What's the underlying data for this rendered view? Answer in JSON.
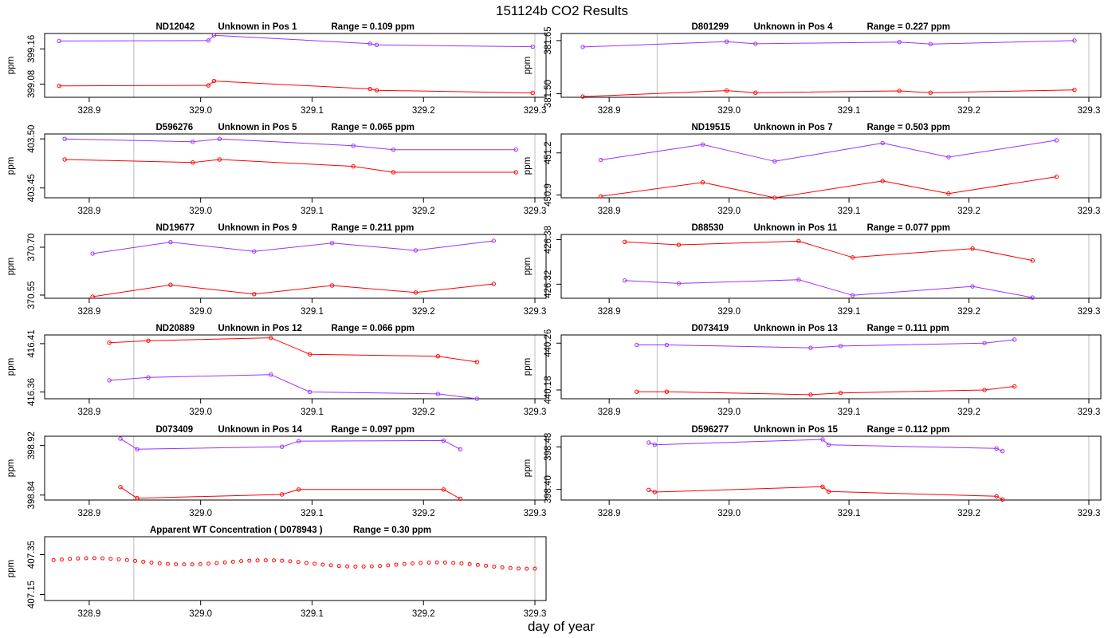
{
  "figure": {
    "title": "151124b  CO2 Results",
    "xlabel": "day of year"
  },
  "colors": {
    "series_a": "#9b30ff",
    "series_b": "#ff0000",
    "vline": "#bdbdbd",
    "axis": "#000000"
  },
  "chart_data": [
    {
      "type": "line",
      "panel_title": {
        "id": "ND12042",
        "pos": "Unknown in Pos 1",
        "range": "Range =  0.109 ppm"
      },
      "ylabel": "ppm",
      "xlim": [
        328.86,
        329.31
      ],
      "ylim": [
        399.05,
        399.195
      ],
      "yticks": [
        399.08,
        399.16
      ],
      "ytick_labels": [
        "399.08",
        "399.16"
      ],
      "xticks": [
        328.9,
        329.0,
        329.1,
        329.2,
        329.3
      ],
      "xtick_labels": [
        "328.9",
        "329.0",
        "329.1",
        "329.2",
        "329.3"
      ],
      "vlines": [
        328.94,
        329.3
      ],
      "series": [
        {
          "name": "upper",
          "x": [
            328.873,
            329.007,
            329.012,
            329.152,
            329.158,
            329.298
          ],
          "y": [
            399.178,
            399.179,
            399.191,
            399.172,
            399.169,
            399.165
          ]
        },
        {
          "name": "lower",
          "x": [
            328.873,
            329.007,
            329.012,
            329.152,
            329.158,
            329.298
          ],
          "y": [
            399.076,
            399.077,
            399.087,
            399.069,
            399.066,
            399.06
          ]
        }
      ]
    },
    {
      "type": "line",
      "panel_title": {
        "id": "D801299",
        "pos": "Unknown in Pos 4",
        "range": "Range =  0.227 ppm"
      },
      "ylabel": "ppm",
      "xlim": [
        328.86,
        329.31
      ],
      "ylim": [
        381.49,
        381.67
      ],
      "yticks": [
        381.5,
        381.65
      ],
      "ytick_labels": [
        "381.50",
        "381.65"
      ],
      "xticks": [
        328.9,
        329.0,
        329.1,
        329.2,
        329.3
      ],
      "xtick_labels": [
        "328.9",
        "329.0",
        "329.1",
        "329.2",
        "329.3"
      ],
      "vlines": [
        328.94,
        329.3
      ],
      "series": [
        {
          "name": "upper",
          "x": [
            328.878,
            328.998,
            329.022,
            329.142,
            329.168,
            329.288
          ],
          "y": [
            381.632,
            381.647,
            381.641,
            381.646,
            381.64,
            381.65
          ]
        },
        {
          "name": "lower",
          "x": [
            328.878,
            328.998,
            329.022,
            329.142,
            329.168,
            329.288
          ],
          "y": [
            381.492,
            381.509,
            381.503,
            381.508,
            381.503,
            381.511
          ]
        }
      ]
    },
    {
      "type": "line",
      "panel_title": {
        "id": "D596276",
        "pos": "Unknown in Pos 5",
        "range": "Range =  0.065 ppm"
      },
      "ylabel": "ppm",
      "xlim": [
        328.86,
        329.31
      ],
      "ylim": [
        403.44,
        403.505
      ],
      "yticks": [
        403.45,
        403.5
      ],
      "ytick_labels": [
        "403.45",
        "403.50"
      ],
      "xticks": [
        328.9,
        329.0,
        329.1,
        329.2,
        329.3
      ],
      "xtick_labels": [
        "328.9",
        "329.0",
        "329.1",
        "329.2",
        "329.3"
      ],
      "vlines": [
        328.94,
        329.3
      ],
      "series": [
        {
          "name": "upper",
          "x": [
            328.878,
            328.993,
            329.017,
            329.137,
            329.173,
            329.283
          ],
          "y": [
            403.5,
            403.497,
            403.5,
            403.493,
            403.489,
            403.489
          ]
        },
        {
          "name": "lower",
          "x": [
            328.878,
            328.993,
            329.017,
            329.137,
            329.173,
            329.283
          ],
          "y": [
            403.479,
            403.476,
            403.479,
            403.472,
            403.466,
            403.466
          ]
        }
      ]
    },
    {
      "type": "line",
      "panel_title": {
        "id": "ND19515",
        "pos": "Unknown in Pos 7",
        "range": "Range =  0.503 ppm"
      },
      "ylabel": "ppm",
      "xlim": [
        328.86,
        329.31
      ],
      "ylim": [
        450.88,
        451.335
      ],
      "yticks": [
        450.9,
        451.2
      ],
      "ytick_labels": [
        "450.9",
        "451.2"
      ],
      "xticks": [
        328.9,
        329.0,
        329.1,
        329.2,
        329.3
      ],
      "xtick_labels": [
        "328.9",
        "329.0",
        "329.1",
        "329.2",
        "329.3"
      ],
      "vlines": [
        328.94,
        329.3
      ],
      "series": [
        {
          "name": "upper",
          "x": [
            328.893,
            328.978,
            329.038,
            329.128,
            329.183,
            329.273
          ],
          "y": [
            451.15,
            451.26,
            451.14,
            451.27,
            451.17,
            451.29
          ]
        },
        {
          "name": "lower",
          "x": [
            328.893,
            328.978,
            329.038,
            329.128,
            329.183,
            329.273
          ],
          "y": [
            450.89,
            450.99,
            450.88,
            451.0,
            450.91,
            451.03
          ]
        }
      ]
    },
    {
      "type": "line",
      "panel_title": {
        "id": "ND19677",
        "pos": "Unknown in Pos 9",
        "range": "Range =  0.211 ppm"
      },
      "ylabel": "ppm",
      "xlim": [
        328.86,
        329.31
      ],
      "ylim": [
        370.54,
        370.74
      ],
      "yticks": [
        370.55,
        370.7
      ],
      "ytick_labels": [
        "370.55",
        "370.70"
      ],
      "xticks": [
        328.9,
        329.0,
        329.1,
        329.2,
        329.3
      ],
      "xtick_labels": [
        "328.9",
        "329.0",
        "329.1",
        "329.2",
        "329.3"
      ],
      "vlines": [
        328.94,
        329.3
      ],
      "series": [
        {
          "name": "upper",
          "x": [
            328.903,
            328.973,
            329.048,
            329.118,
            329.193,
            329.263
          ],
          "y": [
            370.68,
            370.716,
            370.687,
            370.713,
            370.69,
            370.72
          ]
        },
        {
          "name": "lower",
          "x": [
            328.903,
            328.973,
            329.048,
            329.118,
            329.193,
            329.263
          ],
          "y": [
            370.545,
            370.582,
            370.553,
            370.58,
            370.558,
            370.585
          ]
        }
      ]
    },
    {
      "type": "line",
      "panel_title": {
        "id": "D88530",
        "pos": "Unknown in Pos 11",
        "range": "Range =  0.077 ppm"
      },
      "ylabel": "ppm",
      "xlim": [
        328.86,
        329.31
      ],
      "ylim": [
        426.301,
        426.387
      ],
      "yticks": [
        426.32,
        426.38
      ],
      "ytick_labels": [
        "426.32",
        "426.38"
      ],
      "xticks": [
        328.9,
        329.0,
        329.1,
        329.2,
        329.3
      ],
      "xtick_labels": [
        "328.9",
        "329.0",
        "329.1",
        "329.2",
        "329.3"
      ],
      "vlines": [
        328.94,
        329.3
      ],
      "series": [
        {
          "name": "upper",
          "x": [
            328.913,
            328.958,
            329.058,
            329.103,
            329.203,
            329.253
          ],
          "y": [
            426.325,
            426.321,
            426.326,
            426.305,
            426.317,
            426.302
          ]
        },
        {
          "name": "lower",
          "x": [
            328.913,
            328.958,
            329.058,
            329.103,
            329.203,
            329.253
          ],
          "y": [
            426.377,
            426.373,
            426.378,
            426.356,
            426.368,
            426.352
          ]
        }
      ]
    },
    {
      "type": "line",
      "panel_title": {
        "id": "ND20889",
        "pos": "Unknown in Pos 12",
        "range": "Range =  0.066 ppm"
      },
      "ylabel": "ppm",
      "xlim": [
        328.86,
        329.31
      ],
      "ylim": [
        416.353,
        416.419
      ],
      "yticks": [
        416.36,
        416.41
      ],
      "ytick_labels": [
        "416.36",
        "416.41"
      ],
      "xticks": [
        328.9,
        329.0,
        329.1,
        329.2,
        329.3
      ],
      "xtick_labels": [
        "328.9",
        "329.0",
        "329.1",
        "329.2",
        "329.3"
      ],
      "vlines": [
        328.94,
        329.3
      ],
      "series": [
        {
          "name": "upper",
          "x": [
            328.918,
            328.953,
            329.063,
            329.098,
            329.213,
            329.248
          ],
          "y": [
            416.372,
            416.375,
            416.378,
            416.36,
            416.358,
            416.353
          ]
        },
        {
          "name": "lower",
          "x": [
            328.918,
            328.953,
            329.063,
            329.098,
            329.213,
            329.248
          ],
          "y": [
            416.411,
            416.413,
            416.416,
            416.399,
            416.397,
            416.391
          ]
        }
      ]
    },
    {
      "type": "line",
      "panel_title": {
        "id": "D073419",
        "pos": "Unknown in Pos 13",
        "range": "Range =  0.111 ppm"
      },
      "ylabel": "ppm",
      "xlim": [
        328.86,
        329.31
      ],
      "ylim": [
        440.165,
        440.274
      ],
      "yticks": [
        440.18,
        440.26
      ],
      "ytick_labels": [
        "440.18",
        "440.26"
      ],
      "xticks": [
        328.9,
        329.0,
        329.1,
        329.2,
        329.3
      ],
      "xtick_labels": [
        "328.9",
        "329.0",
        "329.1",
        "329.2",
        "329.3"
      ],
      "vlines": [
        328.94,
        329.3
      ],
      "series": [
        {
          "name": "upper",
          "x": [
            328.923,
            328.948,
            329.068,
            329.093,
            329.213,
            329.238
          ],
          "y": [
            440.257,
            440.257,
            440.252,
            440.255,
            440.26,
            440.266
          ]
        },
        {
          "name": "lower",
          "x": [
            328.923,
            328.948,
            329.068,
            329.093,
            329.213,
            329.238
          ],
          "y": [
            440.177,
            440.177,
            440.172,
            440.175,
            440.18,
            440.186
          ]
        }
      ]
    },
    {
      "type": "line",
      "panel_title": {
        "id": "D073409",
        "pos": "Unknown in Pos 14",
        "range": "Range =  0.097 ppm"
      },
      "ylabel": "ppm",
      "xlim": [
        328.86,
        329.31
      ],
      "ylim": [
        398.832,
        398.935
      ],
      "yticks": [
        398.84,
        398.92
      ],
      "ytick_labels": [
        "398.84",
        "398.92"
      ],
      "xticks": [
        328.9,
        329.0,
        329.1,
        329.2,
        329.3
      ],
      "xtick_labels": [
        "328.9",
        "329.0",
        "329.1",
        "329.2",
        "329.3"
      ],
      "vlines": [
        328.94,
        329.3
      ],
      "series": [
        {
          "name": "upper",
          "x": [
            328.928,
            328.943,
            329.073,
            329.088,
            329.218,
            329.233
          ],
          "y": [
            398.931,
            398.914,
            398.918,
            398.927,
            398.928,
            398.914
          ]
        },
        {
          "name": "lower",
          "x": [
            328.928,
            328.943,
            329.073,
            329.088,
            329.218,
            329.233
          ],
          "y": [
            398.853,
            398.835,
            398.841,
            398.849,
            398.849,
            398.834
          ]
        }
      ]
    },
    {
      "type": "line",
      "panel_title": {
        "id": "D596277",
        "pos": "Unknown in Pos 15",
        "range": "Range =  0.112 ppm"
      },
      "ylabel": "ppm",
      "xlim": [
        328.86,
        329.31
      ],
      "ylim": [
        398.38,
        398.5
      ],
      "yticks": [
        398.4,
        398.48
      ],
      "ytick_labels": [
        "398.40",
        "398.48"
      ],
      "xticks": [
        328.9,
        329.0,
        329.1,
        329.2,
        329.3
      ],
      "xtick_labels": [
        "328.9",
        "329.0",
        "329.1",
        "329.2",
        "329.3"
      ],
      "vlines": [
        328.94,
        329.3
      ],
      "series": [
        {
          "name": "upper",
          "x": [
            328.933,
            328.938,
            329.078,
            329.083,
            329.223,
            329.228
          ],
          "y": [
            398.488,
            398.484,
            398.494,
            398.484,
            398.477,
            398.472
          ]
        },
        {
          "name": "lower",
          "x": [
            328.933,
            328.938,
            329.078,
            329.083,
            329.223,
            329.228
          ],
          "y": [
            398.399,
            398.395,
            398.405,
            398.396,
            398.387,
            398.381
          ]
        }
      ]
    },
    {
      "type": "scatter",
      "panel_title": {
        "id": "Apparent WT Concentration ( D078943 )",
        "pos": "",
        "range": "Range = 0.30 ppm"
      },
      "ylabel": "ppm",
      "xlim": [
        328.86,
        329.31
      ],
      "ylim": [
        407.12,
        407.44
      ],
      "yticks": [
        407.15,
        407.35
      ],
      "ytick_labels": [
        "407.15",
        "407.35"
      ],
      "xticks": [
        328.9,
        329.0,
        329.1,
        329.2,
        329.3
      ],
      "xtick_labels": [
        "328.9",
        "329.0",
        "329.1",
        "329.2",
        "329.3"
      ],
      "vlines": [
        328.94,
        329.3
      ],
      "wt_curve": {
        "x_start": 328.868,
        "x_end": 329.3,
        "count": 60,
        "base": 407.322,
        "trend": -0.03,
        "amp": 0.013,
        "period": 0.155,
        "phase": 0.03
      }
    }
  ]
}
